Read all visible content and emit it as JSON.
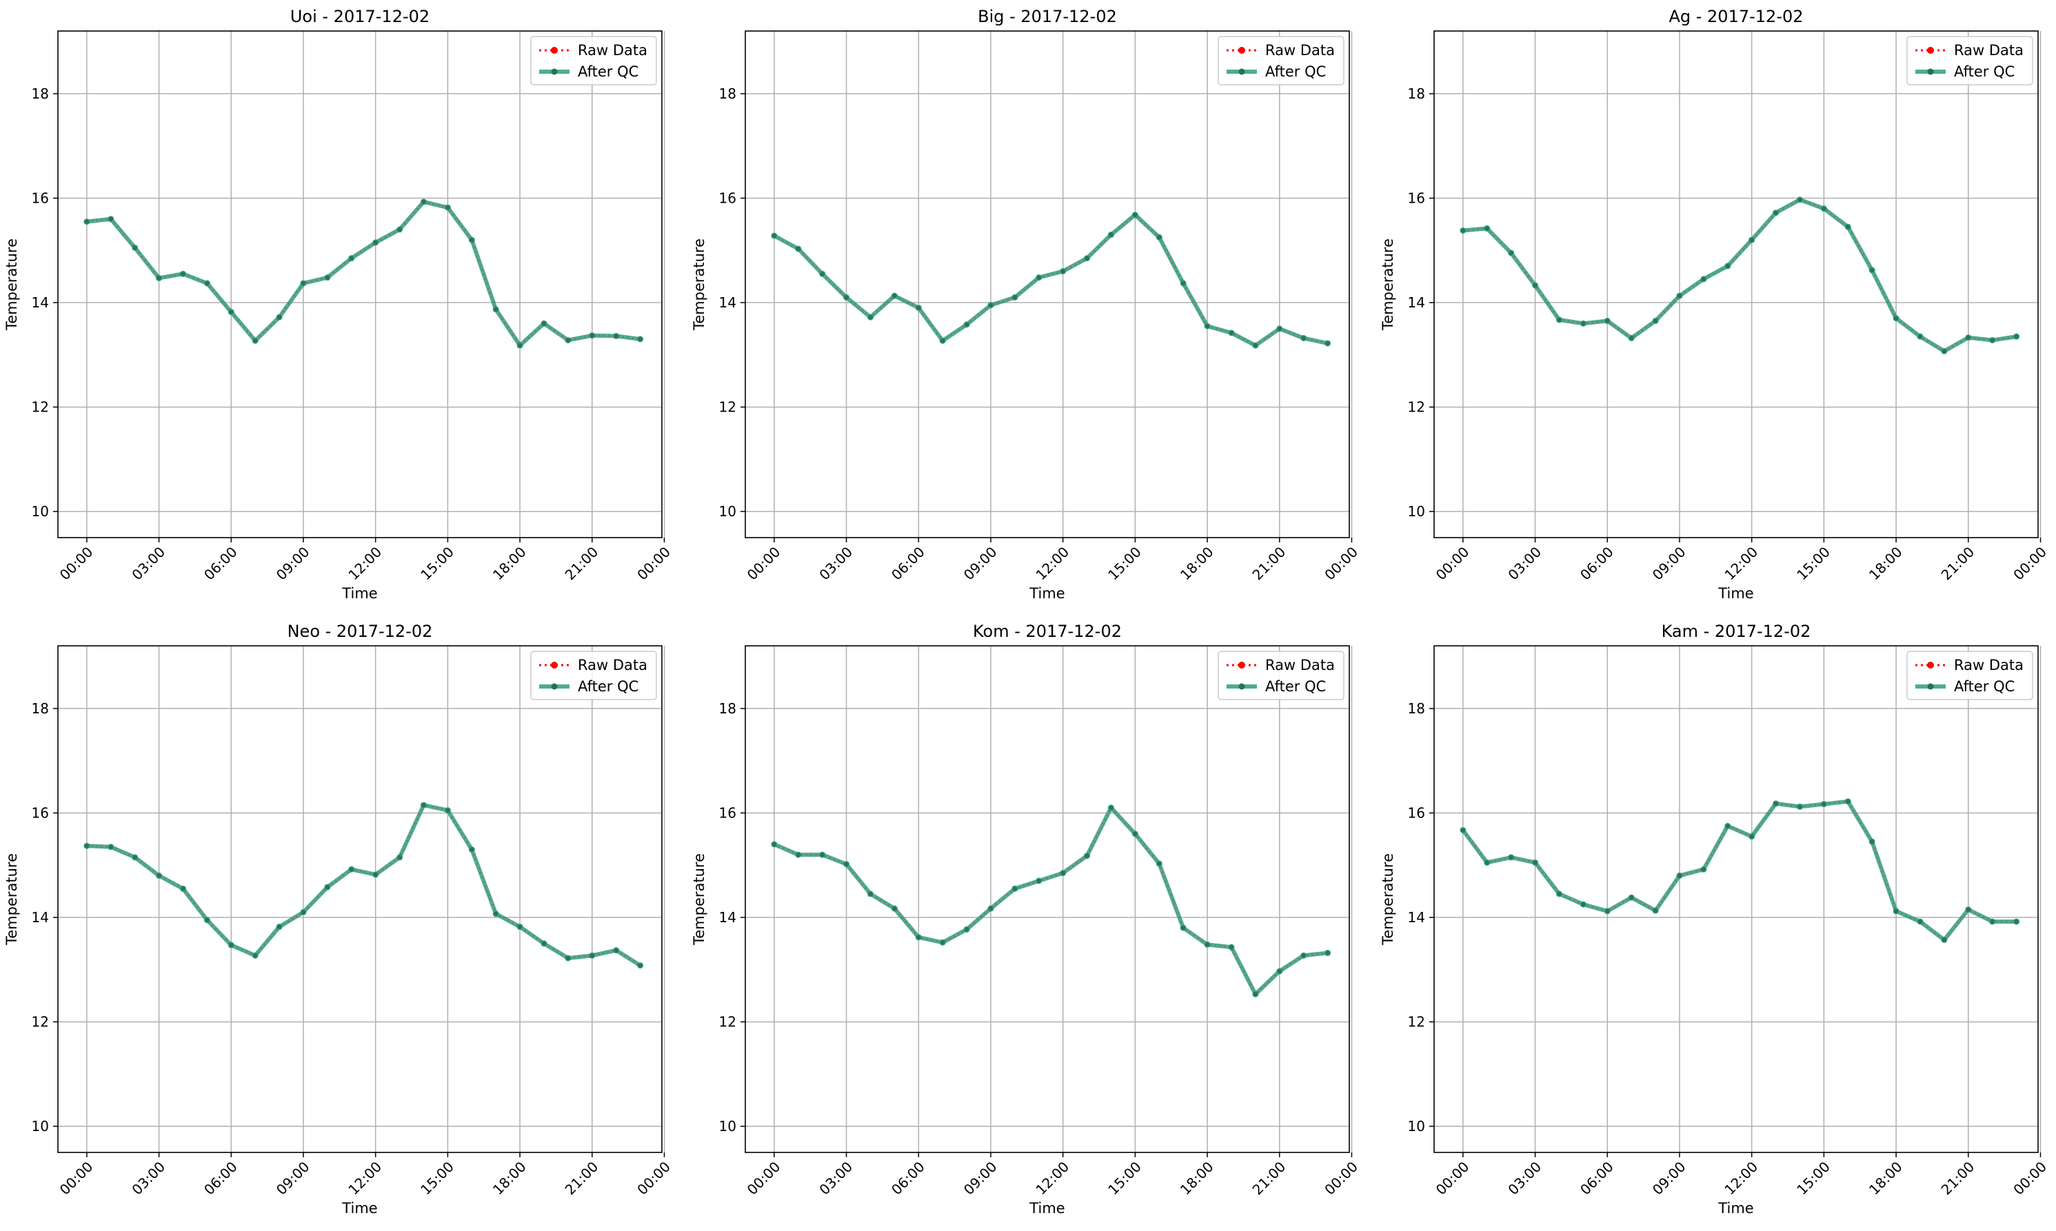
{
  "chart_data": [
    {
      "type": "line",
      "title": "Uoi - 2017-12-02",
      "xlabel": "Time",
      "ylabel": "Temperature",
      "ylim": [
        9.5,
        19.2
      ],
      "yticks": [
        "10",
        "12",
        "14",
        "16",
        "18"
      ],
      "xlim": [
        -1.2,
        23.9
      ],
      "xticks": [
        "00:00",
        "03:00",
        "06:00",
        "09:00",
        "12:00",
        "15:00",
        "18:00",
        "21:00",
        "00:00"
      ],
      "grid": true,
      "legend": "top-right",
      "x": [
        "00:00",
        "01:00",
        "02:00",
        "03:00",
        "04:00",
        "05:00",
        "06:00",
        "07:00",
        "08:00",
        "09:00",
        "10:00",
        "11:00",
        "12:00",
        "13:00",
        "14:00",
        "15:00",
        "16:00",
        "17:00",
        "18:00",
        "19:00",
        "20:00",
        "21:00",
        "22:00",
        "23:00"
      ],
      "series": [
        {
          "name": "Raw Data",
          "color": "#ff0000",
          "values": [
            15.55,
            15.6,
            15.05,
            14.47,
            14.55,
            14.37,
            13.82,
            13.27,
            13.72,
            14.37,
            14.48,
            14.85,
            15.15,
            15.4,
            15.93,
            15.82,
            15.2,
            13.87,
            13.18,
            13.6,
            13.28,
            13.37,
            13.36,
            13.3
          ]
        },
        {
          "name": "After QC",
          "color": "#2e9e7e",
          "values": [
            15.55,
            15.6,
            15.05,
            14.47,
            14.55,
            14.37,
            13.82,
            13.27,
            13.72,
            14.37,
            14.48,
            14.85,
            15.15,
            15.4,
            15.93,
            15.82,
            15.2,
            13.87,
            13.18,
            13.6,
            13.28,
            13.37,
            13.36,
            13.3
          ]
        }
      ]
    },
    {
      "type": "line",
      "title": "Big - 2017-12-02",
      "xlabel": "Time",
      "ylabel": "Temperature",
      "ylim": [
        9.5,
        19.2
      ],
      "yticks": [
        "10",
        "12",
        "14",
        "16",
        "18"
      ],
      "xlim": [
        -1.2,
        23.9
      ],
      "xticks": [
        "00:00",
        "03:00",
        "06:00",
        "09:00",
        "12:00",
        "15:00",
        "18:00",
        "21:00",
        "00:00"
      ],
      "grid": true,
      "legend": "top-right",
      "x": [
        "00:00",
        "01:00",
        "02:00",
        "03:00",
        "04:00",
        "05:00",
        "06:00",
        "07:00",
        "08:00",
        "09:00",
        "10:00",
        "11:00",
        "12:00",
        "13:00",
        "14:00",
        "15:00",
        "16:00",
        "17:00",
        "18:00",
        "19:00",
        "20:00",
        "21:00",
        "22:00",
        "23:00"
      ],
      "series": [
        {
          "name": "Raw Data",
          "color": "#ff0000",
          "values": [
            15.28,
            15.03,
            14.55,
            14.1,
            13.72,
            14.13,
            13.9,
            13.27,
            13.58,
            13.95,
            14.1,
            14.48,
            14.6,
            14.85,
            15.3,
            15.68,
            15.25,
            14.37,
            13.55,
            13.42,
            13.18,
            13.5,
            13.32,
            13.22
          ]
        },
        {
          "name": "After QC",
          "color": "#2e9e7e",
          "values": [
            15.28,
            15.03,
            14.55,
            14.1,
            13.72,
            14.13,
            13.9,
            13.27,
            13.58,
            13.95,
            14.1,
            14.48,
            14.6,
            14.85,
            15.3,
            15.68,
            15.25,
            14.37,
            13.55,
            13.42,
            13.18,
            13.5,
            13.32,
            13.22
          ]
        }
      ]
    },
    {
      "type": "line",
      "title": "Ag - 2017-12-02",
      "xlabel": "Time",
      "ylabel": "Temperature",
      "ylim": [
        9.5,
        19.2
      ],
      "yticks": [
        "10",
        "12",
        "14",
        "16",
        "18"
      ],
      "xlim": [
        -1.2,
        23.9
      ],
      "xticks": [
        "00:00",
        "03:00",
        "06:00",
        "09:00",
        "12:00",
        "15:00",
        "18:00",
        "21:00",
        "00:00"
      ],
      "grid": true,
      "legend": "top-right",
      "x": [
        "00:00",
        "01:00",
        "02:00",
        "03:00",
        "04:00",
        "05:00",
        "06:00",
        "07:00",
        "08:00",
        "09:00",
        "10:00",
        "11:00",
        "12:00",
        "13:00",
        "14:00",
        "15:00",
        "16:00",
        "17:00",
        "18:00",
        "19:00",
        "20:00",
        "21:00",
        "22:00",
        "23:00"
      ],
      "series": [
        {
          "name": "Raw Data",
          "color": "#ff0000",
          "values": [
            15.38,
            15.42,
            14.95,
            14.33,
            13.67,
            13.6,
            13.65,
            13.32,
            13.65,
            14.13,
            14.45,
            14.7,
            15.2,
            15.72,
            15.97,
            15.8,
            15.45,
            14.62,
            13.7,
            13.35,
            13.07,
            13.33,
            13.28,
            13.35
          ]
        },
        {
          "name": "After QC",
          "color": "#2e9e7e",
          "values": [
            15.38,
            15.42,
            14.95,
            14.33,
            13.67,
            13.6,
            13.65,
            13.32,
            13.65,
            14.13,
            14.45,
            14.7,
            15.2,
            15.72,
            15.97,
            15.8,
            15.45,
            14.62,
            13.7,
            13.35,
            13.07,
            13.33,
            13.28,
            13.35
          ]
        }
      ]
    },
    {
      "type": "line",
      "title": "Neo - 2017-12-02",
      "xlabel": "Time",
      "ylabel": "Temperature",
      "ylim": [
        9.5,
        19.2
      ],
      "yticks": [
        "10",
        "12",
        "14",
        "16",
        "18"
      ],
      "xlim": [
        -1.2,
        23.9
      ],
      "xticks": [
        "00:00",
        "03:00",
        "06:00",
        "09:00",
        "12:00",
        "15:00",
        "18:00",
        "21:00",
        "00:00"
      ],
      "grid": true,
      "legend": "top-right",
      "x": [
        "00:00",
        "01:00",
        "02:00",
        "03:00",
        "04:00",
        "05:00",
        "06:00",
        "07:00",
        "08:00",
        "09:00",
        "10:00",
        "11:00",
        "12:00",
        "13:00",
        "14:00",
        "15:00",
        "16:00",
        "17:00",
        "18:00",
        "19:00",
        "20:00",
        "21:00",
        "22:00",
        "23:00"
      ],
      "series": [
        {
          "name": "Raw Data",
          "color": "#ff0000",
          "values": [
            15.37,
            15.35,
            15.15,
            14.8,
            14.55,
            13.95,
            13.47,
            13.27,
            13.82,
            14.1,
            14.58,
            14.92,
            14.82,
            15.15,
            16.15,
            16.05,
            15.3,
            14.07,
            13.82,
            13.5,
            13.22,
            13.27,
            13.37,
            13.08
          ]
        },
        {
          "name": "After QC",
          "color": "#2e9e7e",
          "values": [
            15.37,
            15.35,
            15.15,
            14.8,
            14.55,
            13.95,
            13.47,
            13.27,
            13.82,
            14.1,
            14.58,
            14.92,
            14.82,
            15.15,
            16.15,
            16.05,
            15.3,
            14.07,
            13.82,
            13.5,
            13.22,
            13.27,
            13.37,
            13.08
          ]
        }
      ]
    },
    {
      "type": "line",
      "title": "Kom - 2017-12-02",
      "xlabel": "Time",
      "ylabel": "Temperature",
      "ylim": [
        9.5,
        19.2
      ],
      "yticks": [
        "10",
        "12",
        "14",
        "16",
        "18"
      ],
      "xlim": [
        -1.2,
        23.9
      ],
      "xticks": [
        "00:00",
        "03:00",
        "06:00",
        "09:00",
        "12:00",
        "15:00",
        "18:00",
        "21:00",
        "00:00"
      ],
      "grid": true,
      "legend": "top-right",
      "x": [
        "00:00",
        "01:00",
        "02:00",
        "03:00",
        "04:00",
        "05:00",
        "06:00",
        "07:00",
        "08:00",
        "09:00",
        "10:00",
        "11:00",
        "12:00",
        "13:00",
        "14:00",
        "15:00",
        "16:00",
        "17:00",
        "18:00",
        "19:00",
        "20:00",
        "21:00",
        "22:00",
        "23:00"
      ],
      "series": [
        {
          "name": "Raw Data",
          "color": "#ff0000",
          "values": [
            15.4,
            15.2,
            15.2,
            15.02,
            14.45,
            14.17,
            13.62,
            13.52,
            13.77,
            14.17,
            14.55,
            14.7,
            14.85,
            15.18,
            16.1,
            15.6,
            15.03,
            13.8,
            13.48,
            13.43,
            12.53,
            12.97,
            13.27,
            13.32
          ]
        },
        {
          "name": "After QC",
          "color": "#2e9e7e",
          "values": [
            15.4,
            15.2,
            15.2,
            15.02,
            14.45,
            14.17,
            13.62,
            13.52,
            13.77,
            14.17,
            14.55,
            14.7,
            14.85,
            15.18,
            16.1,
            15.6,
            15.03,
            13.8,
            13.48,
            13.43,
            12.53,
            12.97,
            13.27,
            13.32
          ]
        }
      ]
    },
    {
      "type": "line",
      "title": "Kam - 2017-12-02",
      "xlabel": "Time",
      "ylabel": "Temperature",
      "ylim": [
        9.5,
        19.2
      ],
      "yticks": [
        "10",
        "12",
        "14",
        "16",
        "18"
      ],
      "xlim": [
        -1.2,
        23.9
      ],
      "xticks": [
        "00:00",
        "03:00",
        "06:00",
        "09:00",
        "12:00",
        "15:00",
        "18:00",
        "21:00",
        "00:00"
      ],
      "grid": true,
      "legend": "top-right",
      "x": [
        "00:00",
        "01:00",
        "02:00",
        "03:00",
        "04:00",
        "05:00",
        "06:00",
        "07:00",
        "08:00",
        "09:00",
        "10:00",
        "11:00",
        "12:00",
        "13:00",
        "14:00",
        "15:00",
        "16:00",
        "17:00",
        "18:00",
        "19:00",
        "20:00",
        "21:00",
        "22:00",
        "23:00"
      ],
      "series": [
        {
          "name": "Raw Data",
          "color": "#ff0000",
          "values": [
            15.67,
            15.05,
            15.15,
            15.05,
            14.45,
            14.25,
            14.12,
            14.38,
            14.13,
            14.8,
            14.92,
            15.75,
            15.55,
            16.18,
            16.12,
            16.17,
            16.22,
            15.45,
            14.12,
            13.92,
            13.57,
            14.15,
            13.92,
            13.92
          ]
        },
        {
          "name": "After QC",
          "color": "#2e9e7e",
          "values": [
            15.67,
            15.05,
            15.15,
            15.05,
            14.45,
            14.25,
            14.12,
            14.38,
            14.13,
            14.8,
            14.92,
            15.75,
            15.55,
            16.18,
            16.12,
            16.17,
            16.22,
            15.45,
            14.12,
            13.92,
            13.57,
            14.15,
            13.92,
            13.92
          ]
        }
      ]
    }
  ]
}
